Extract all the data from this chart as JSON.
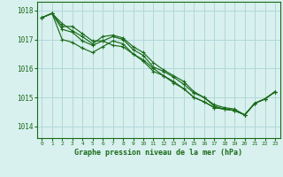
{
  "title": "Graphe pression niveau de la mer (hPa)",
  "bg_color": "#d8f0ee",
  "grid_color": "#b0d8d8",
  "line_color": "#1a6b1a",
  "xlim": [
    -0.5,
    23.5
  ],
  "ylim": [
    1013.6,
    1018.3
  ],
  "yticks": [
    1014,
    1015,
    1016,
    1017,
    1018
  ],
  "xticks": [
    0,
    1,
    2,
    3,
    4,
    5,
    6,
    7,
    8,
    9,
    10,
    11,
    12,
    13,
    14,
    15,
    16,
    17,
    18,
    19,
    20,
    21,
    22,
    23
  ],
  "series1": [
    [
      0,
      1017.75
    ],
    [
      1,
      1017.9
    ],
    [
      2,
      1017.55
    ],
    [
      3,
      1017.3
    ],
    [
      4,
      1017.1
    ],
    [
      5,
      1016.85
    ],
    [
      6,
      1017.1
    ],
    [
      7,
      1017.15
    ],
    [
      8,
      1017.05
    ],
    [
      9,
      1016.75
    ],
    [
      10,
      1016.55
    ],
    [
      11,
      1016.2
    ],
    [
      12,
      1015.95
    ],
    [
      13,
      1015.75
    ],
    [
      14,
      1015.55
    ],
    [
      15,
      1015.2
    ],
    [
      16,
      1015.0
    ],
    [
      17,
      1014.75
    ],
    [
      18,
      1014.65
    ],
    [
      19,
      1014.6
    ],
    [
      20,
      1014.4
    ],
    [
      21,
      1014.8
    ],
    [
      22,
      1014.95
    ],
    [
      23,
      1015.2
    ]
  ],
  "series2": [
    [
      0,
      1017.75
    ],
    [
      1,
      1017.9
    ],
    [
      2,
      1017.45
    ],
    [
      3,
      1017.45
    ],
    [
      4,
      1017.2
    ],
    [
      5,
      1016.95
    ],
    [
      6,
      1016.95
    ],
    [
      7,
      1016.8
    ],
    [
      8,
      1016.75
    ],
    [
      9,
      1016.5
    ],
    [
      10,
      1016.3
    ],
    [
      11,
      1016.0
    ],
    [
      12,
      1015.75
    ],
    [
      13,
      1015.5
    ],
    [
      14,
      1015.3
    ],
    [
      15,
      1015.0
    ],
    [
      16,
      1014.85
    ],
    [
      17,
      1014.65
    ],
    [
      18,
      1014.6
    ],
    [
      19,
      1014.55
    ],
    [
      20,
      1014.4
    ],
    [
      21,
      1014.8
    ],
    [
      22,
      1014.95
    ],
    [
      23,
      1015.2
    ]
  ],
  "series3": [
    [
      0,
      1017.75
    ],
    [
      1,
      1017.9
    ],
    [
      2,
      1017.35
    ],
    [
      3,
      1017.25
    ],
    [
      4,
      1016.95
    ],
    [
      5,
      1016.8
    ],
    [
      6,
      1016.95
    ],
    [
      7,
      1017.1
    ],
    [
      8,
      1017.0
    ],
    [
      9,
      1016.65
    ],
    [
      10,
      1016.45
    ],
    [
      11,
      1016.05
    ],
    [
      12,
      1015.9
    ],
    [
      13,
      1015.7
    ],
    [
      14,
      1015.45
    ],
    [
      15,
      1015.15
    ],
    [
      16,
      1015.0
    ],
    [
      17,
      1014.7
    ],
    [
      18,
      1014.6
    ],
    [
      19,
      1014.55
    ],
    [
      20,
      1014.4
    ],
    [
      21,
      1014.8
    ],
    [
      22,
      1014.95
    ],
    [
      23,
      1015.2
    ]
  ],
  "series4": [
    [
      0,
      1017.75
    ],
    [
      1,
      1017.9
    ],
    [
      2,
      1017.0
    ],
    [
      3,
      1016.9
    ],
    [
      4,
      1016.7
    ],
    [
      5,
      1016.55
    ],
    [
      6,
      1016.75
    ],
    [
      7,
      1016.95
    ],
    [
      8,
      1016.85
    ],
    [
      9,
      1016.5
    ],
    [
      10,
      1016.25
    ],
    [
      11,
      1015.9
    ],
    [
      12,
      1015.75
    ],
    [
      13,
      1015.55
    ],
    [
      14,
      1015.3
    ],
    [
      15,
      1015.0
    ],
    [
      16,
      1014.85
    ],
    [
      17,
      1014.65
    ],
    [
      18,
      1014.6
    ],
    [
      19,
      1014.55
    ],
    [
      20,
      1014.4
    ],
    [
      21,
      1014.8
    ],
    [
      22,
      1014.95
    ],
    [
      23,
      1015.2
    ]
  ]
}
